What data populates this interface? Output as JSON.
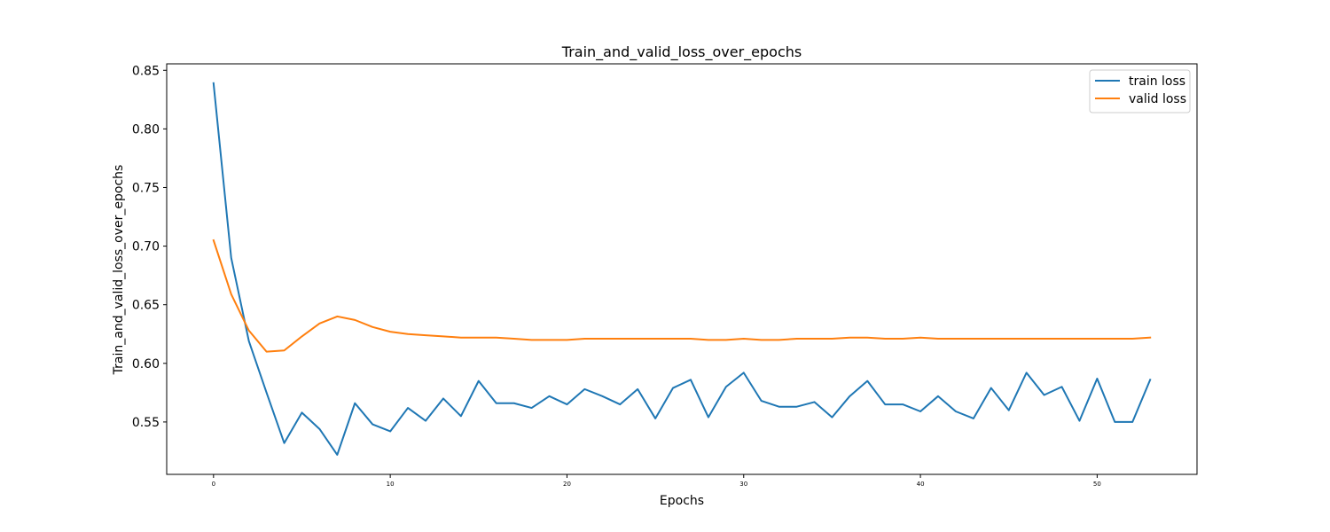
{
  "chart_data": {
    "type": "line",
    "title": "Train_and_valid_loss_over_epochs",
    "xlabel": "Epochs",
    "ylabel": "Train_and_valid_loss_over_epochs",
    "xlim": [
      -2.65,
      55.65
    ],
    "ylim": [
      0.5053,
      0.8555
    ],
    "x_ticks": [
      0,
      10,
      20,
      30,
      40,
      50
    ],
    "y_ticks": [
      0.55,
      0.6,
      0.65,
      0.7,
      0.75,
      0.8,
      0.85
    ],
    "y_tick_labels": [
      "0.55",
      "0.60",
      "0.65",
      "0.70",
      "0.75",
      "0.80",
      "0.85"
    ],
    "grid": false,
    "legend_position": "top-right",
    "x": [
      0,
      1,
      2,
      3,
      4,
      5,
      6,
      7,
      8,
      9,
      10,
      11,
      12,
      13,
      14,
      15,
      16,
      17,
      18,
      19,
      20,
      21,
      22,
      23,
      24,
      25,
      26,
      27,
      28,
      29,
      30,
      31,
      32,
      33,
      34,
      35,
      36,
      37,
      38,
      39,
      40,
      41,
      42,
      43,
      44,
      45,
      46,
      47,
      48,
      49,
      50,
      51,
      52,
      53
    ],
    "series": [
      {
        "name": "train loss",
        "color": "#1f77b4",
        "values": [
          0.839,
          0.69,
          0.619,
          0.575,
          0.532,
          0.558,
          0.544,
          0.522,
          0.566,
          0.548,
          0.542,
          0.562,
          0.551,
          0.57,
          0.555,
          0.585,
          0.566,
          0.566,
          0.562,
          0.572,
          0.565,
          0.578,
          0.572,
          0.565,
          0.578,
          0.553,
          0.579,
          0.586,
          0.554,
          0.58,
          0.592,
          0.568,
          0.563,
          0.563,
          0.567,
          0.554,
          0.572,
          0.585,
          0.565,
          0.565,
          0.559,
          0.572,
          0.559,
          0.553,
          0.579,
          0.56,
          0.592,
          0.573,
          0.58,
          0.551,
          0.587,
          0.55,
          0.55,
          0.586
        ]
      },
      {
        "name": "valid loss",
        "color": "#ff7f0e",
        "values": [
          0.705,
          0.659,
          0.628,
          0.61,
          0.611,
          0.623,
          0.634,
          0.64,
          0.637,
          0.631,
          0.627,
          0.625,
          0.624,
          0.623,
          0.622,
          0.622,
          0.622,
          0.621,
          0.62,
          0.62,
          0.62,
          0.621,
          0.621,
          0.621,
          0.621,
          0.621,
          0.621,
          0.621,
          0.62,
          0.62,
          0.621,
          0.62,
          0.62,
          0.621,
          0.621,
          0.621,
          0.622,
          0.622,
          0.621,
          0.621,
          0.622,
          0.621,
          0.621,
          0.621,
          0.621,
          0.621,
          0.621,
          0.621,
          0.621,
          0.621,
          0.621,
          0.621,
          0.621,
          0.622
        ]
      }
    ]
  }
}
